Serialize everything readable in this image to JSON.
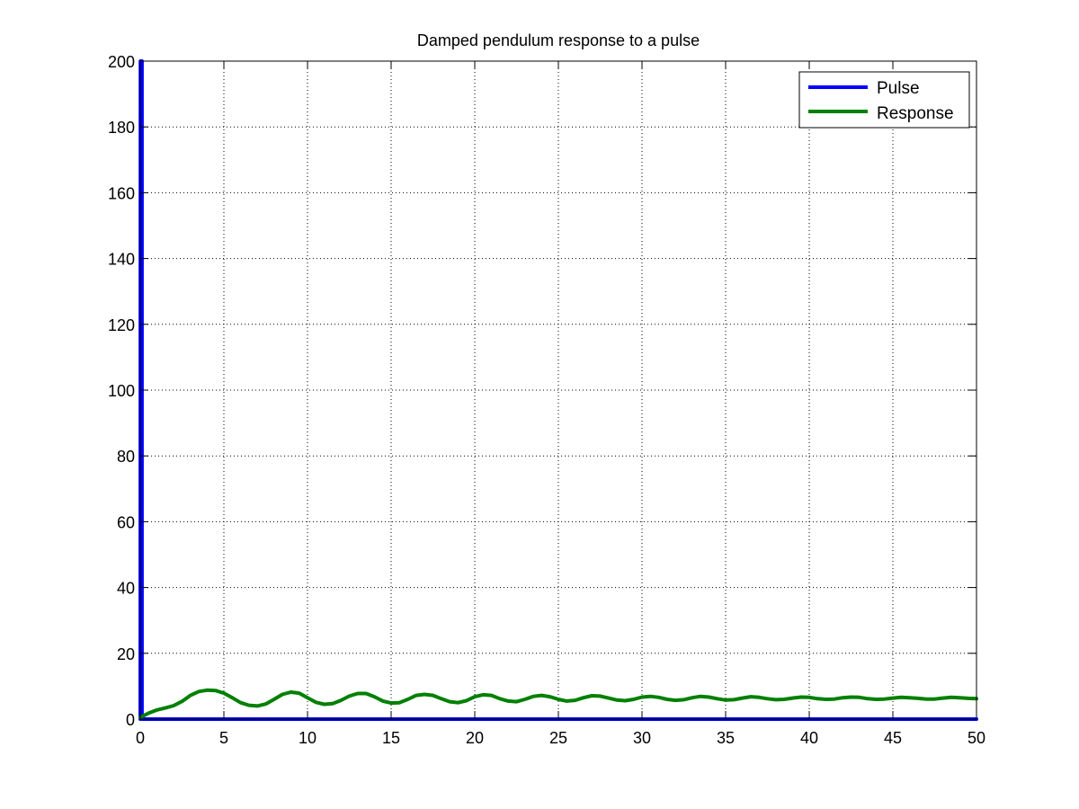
{
  "chart_data": {
    "type": "line",
    "title": "Damped pendulum response to a pulse",
    "xlabel": "",
    "ylabel": "",
    "xlim": [
      0,
      50
    ],
    "ylim": [
      0,
      200
    ],
    "x_ticks": [
      0,
      5,
      10,
      15,
      20,
      25,
      30,
      35,
      40,
      45,
      50
    ],
    "x_tick_labels": [
      "0",
      "5",
      "10",
      "15",
      "20",
      "25",
      "30",
      "35",
      "40",
      "45",
      "50"
    ],
    "y_ticks": [
      0,
      20,
      40,
      60,
      80,
      100,
      120,
      140,
      160,
      180,
      200
    ],
    "y_tick_labels": [
      "0",
      "20",
      "40",
      "60",
      "80",
      "100",
      "120",
      "140",
      "160",
      "180",
      "200"
    ],
    "grid": true,
    "grid_style": "dotted",
    "legend_position": "top-right",
    "series": [
      {
        "name": "Pulse",
        "color": "#0000ff",
        "x": [
          0,
          0.01,
          0.05,
          0.1,
          0.1,
          10,
          20,
          30,
          40,
          50
        ],
        "y": [
          0,
          200,
          200,
          200,
          0,
          0,
          0,
          0,
          0,
          0
        ]
      },
      {
        "name": "Response",
        "color": "#008000",
        "x": [
          0,
          0.5,
          1,
          1.5,
          2,
          2.5,
          3,
          3.5,
          4,
          4.5,
          5,
          5.5,
          6,
          6.5,
          7,
          7.5,
          8,
          8.5,
          9,
          9.5,
          10,
          10.5,
          11,
          11.5,
          12,
          12.5,
          13,
          13.5,
          14,
          14.5,
          15,
          15.5,
          16,
          16.5,
          17,
          17.5,
          18,
          18.5,
          19,
          19.5,
          20,
          20.5,
          21,
          21.5,
          22,
          22.5,
          23,
          23.5,
          24,
          24.5,
          25,
          25.5,
          26,
          26.5,
          27,
          27.5,
          28,
          28.5,
          29,
          29.5,
          30,
          30.5,
          31,
          31.5,
          32,
          32.5,
          33,
          33.5,
          34,
          34.5,
          35,
          35.5,
          36,
          36.5,
          37,
          37.5,
          38,
          38.5,
          39,
          39.5,
          40,
          40.5,
          41,
          41.5,
          42,
          42.5,
          43,
          43.5,
          44,
          44.5,
          45,
          45.5,
          46,
          46.5,
          47,
          47.5,
          48,
          48.5,
          49,
          49.5,
          50
        ],
        "y": [
          0.5,
          1.8,
          2.8,
          3.4,
          4.1,
          5.4,
          7.2,
          8.4,
          8.8,
          8.7,
          7.9,
          6.5,
          5.0,
          4.2,
          4.0,
          4.6,
          6.0,
          7.5,
          8.2,
          7.9,
          6.5,
          5.1,
          4.5,
          4.7,
          5.7,
          7.0,
          7.8,
          7.8,
          6.8,
          5.5,
          4.9,
          5.0,
          6.0,
          7.2,
          7.5,
          7.2,
          6.2,
          5.3,
          5.0,
          5.6,
          6.8,
          7.4,
          7.2,
          6.2,
          5.5,
          5.3,
          6.0,
          6.9,
          7.2,
          6.8,
          6.0,
          5.5,
          5.7,
          6.5,
          7.1,
          7.0,
          6.4,
          5.8,
          5.6,
          6.0,
          6.7,
          6.9,
          6.6,
          6.0,
          5.7,
          5.9,
          6.5,
          6.9,
          6.7,
          6.2,
          5.8,
          5.9,
          6.4,
          6.8,
          6.6,
          6.2,
          5.9,
          6.0,
          6.4,
          6.7,
          6.6,
          6.2,
          6.0,
          6.1,
          6.5,
          6.7,
          6.6,
          6.2,
          6.0,
          6.1,
          6.4,
          6.6,
          6.5,
          6.3,
          6.1,
          6.1,
          6.4,
          6.6,
          6.5,
          6.3,
          6.2
        ]
      }
    ]
  }
}
